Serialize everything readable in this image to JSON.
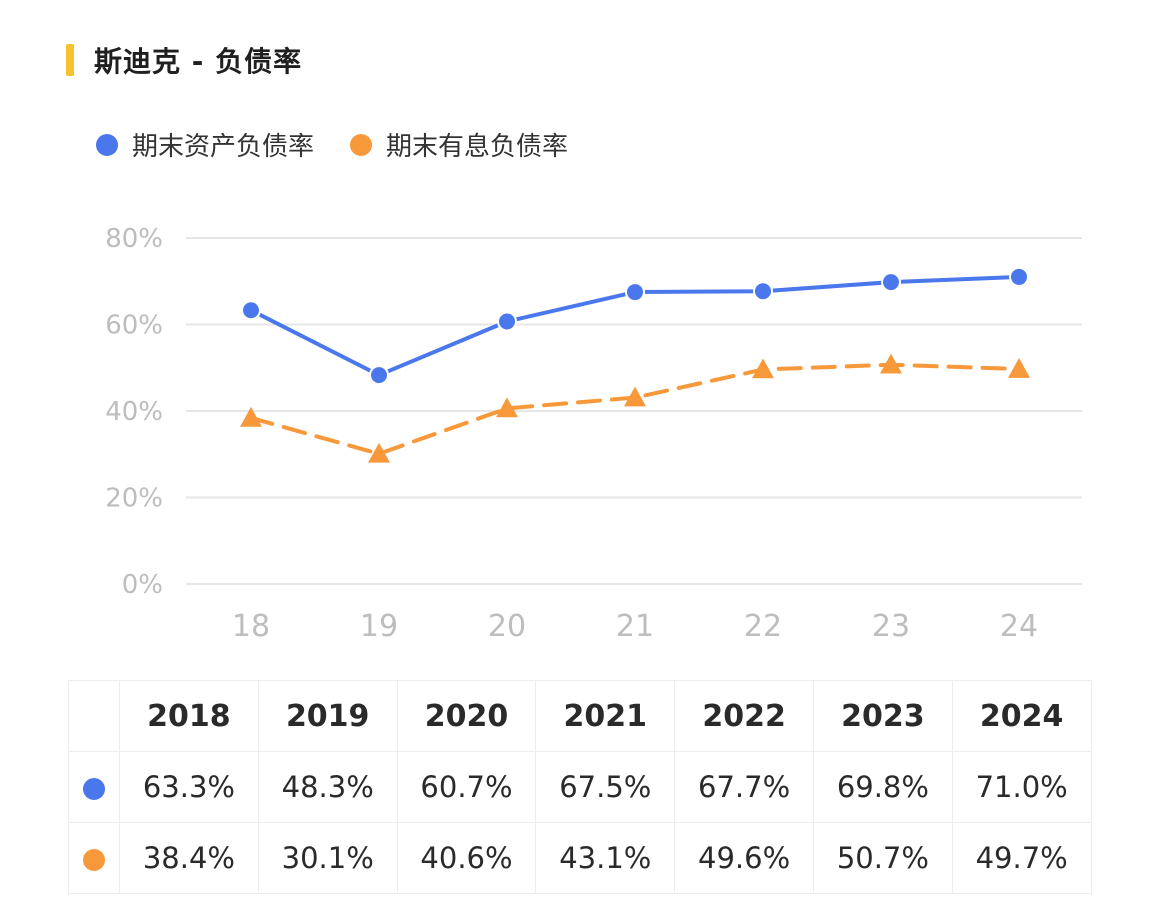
{
  "title": "斯迪克 - 负债率",
  "colors": {
    "accent_bar": "#f7c230",
    "series_blue": "#4a78ec",
    "series_orange": "#f7983b",
    "grid": "#e6e6e6",
    "axis_text": "#bdbdbd"
  },
  "legend": [
    {
      "label": "期末资产负债率",
      "color": "#4a78ec"
    },
    {
      "label": "期末有息负债率",
      "color": "#f7983b"
    }
  ],
  "chart_data": {
    "type": "line",
    "categories": [
      "18",
      "19",
      "20",
      "21",
      "22",
      "23",
      "24"
    ],
    "y_ticks": [
      "0%",
      "20%",
      "40%",
      "60%",
      "80%"
    ],
    "ylim": [
      0,
      80
    ],
    "grid": true,
    "legend_position": "top-left",
    "series": [
      {
        "name": "期末资产负债率",
        "values": [
          63.3,
          48.3,
          60.7,
          67.5,
          67.7,
          69.8,
          71.0
        ],
        "color": "#4a78ec",
        "style": "solid",
        "marker": "circle"
      },
      {
        "name": "期末有息负债率",
        "values": [
          38.4,
          30.1,
          40.6,
          43.1,
          49.6,
          50.7,
          49.7
        ],
        "color": "#f7983b",
        "style": "dashed",
        "marker": "triangle"
      }
    ]
  },
  "table": {
    "headers": [
      "2018",
      "2019",
      "2020",
      "2021",
      "2022",
      "2023",
      "2024"
    ],
    "rows": [
      {
        "color": "#4a78ec",
        "values": [
          "63.3%",
          "48.3%",
          "60.7%",
          "67.5%",
          "67.7%",
          "69.8%",
          "71.0%"
        ]
      },
      {
        "color": "#f7983b",
        "values": [
          "38.4%",
          "30.1%",
          "40.6%",
          "43.1%",
          "49.6%",
          "50.7%",
          "49.7%"
        ]
      }
    ]
  }
}
